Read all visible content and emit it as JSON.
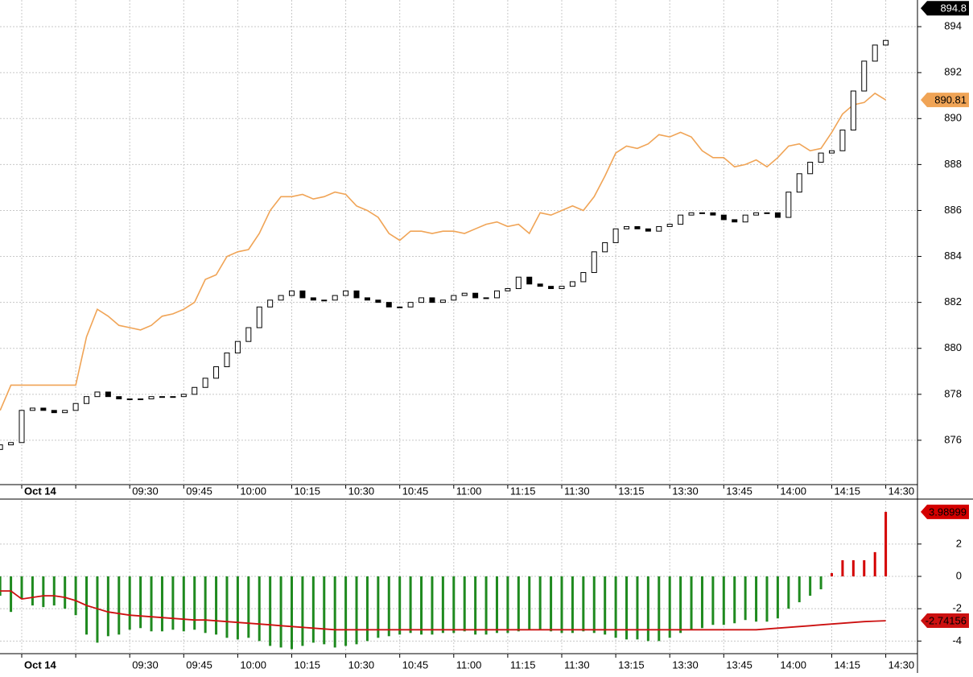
{
  "chart_data": [
    {
      "type": "candlestick",
      "categories": [
        null,
        null,
        "Oct 14",
        null,
        null,
        null,
        null,
        null,
        null,
        null,
        null,
        null,
        "09:30",
        null,
        null,
        null,
        null,
        "09:45",
        null,
        null,
        null,
        null,
        "10:00",
        null,
        null,
        null,
        null,
        "10:15",
        null,
        null,
        null,
        null,
        "10:30",
        null,
        null,
        null,
        null,
        "10:45",
        null,
        null,
        null,
        null,
        "11:00",
        null,
        null,
        null,
        null,
        "11:15",
        null,
        null,
        null,
        null,
        "11:30",
        null,
        null,
        null,
        null,
        "13:15",
        null,
        null,
        null,
        null,
        "13:30",
        null,
        null,
        null,
        null,
        "13:45",
        null,
        null,
        null,
        null,
        "14:00",
        null,
        null,
        null,
        null,
        "14:15",
        null,
        null,
        null,
        null,
        "14:30"
      ],
      "open": [
        875.6,
        875.8,
        875.9,
        877.3,
        877.4,
        877.3,
        877.2,
        877.3,
        877.6,
        877.9,
        878.1,
        877.9,
        877.8,
        877.8,
        877.8,
        877.9,
        877.9,
        877.9,
        878.0,
        878.3,
        878.7,
        879.2,
        879.8,
        880.3,
        880.9,
        881.8,
        882.1,
        882.3,
        882.5,
        882.2,
        882.1,
        882.1,
        882.3,
        882.5,
        882.2,
        882.1,
        882.0,
        881.8,
        881.8,
        882.0,
        882.2,
        882.0,
        882.1,
        882.3,
        882.4,
        882.2,
        882.2,
        882.5,
        882.6,
        883.1,
        882.8,
        882.7,
        882.6,
        882.7,
        882.9,
        883.3,
        884.2,
        884.6,
        885.2,
        885.3,
        885.2,
        885.1,
        885.3,
        885.4,
        885.8,
        885.9,
        885.9,
        885.8,
        885.6,
        885.5,
        885.8,
        885.9,
        885.9,
        885.7,
        886.8,
        887.6,
        888.1,
        888.5,
        888.6,
        889.5,
        891.2,
        892.5,
        893.2
      ],
      "close": [
        875.8,
        875.9,
        877.3,
        877.4,
        877.3,
        877.2,
        877.3,
        877.6,
        877.9,
        878.1,
        877.9,
        877.8,
        877.8,
        877.8,
        877.9,
        877.9,
        877.9,
        878.0,
        878.3,
        878.7,
        879.2,
        879.8,
        880.3,
        880.9,
        881.8,
        882.1,
        882.3,
        882.5,
        882.2,
        882.1,
        882.1,
        882.3,
        882.5,
        882.2,
        882.1,
        882.0,
        881.8,
        881.8,
        882.0,
        882.2,
        882.0,
        882.1,
        882.3,
        882.4,
        882.2,
        882.2,
        882.5,
        882.6,
        883.1,
        882.8,
        882.7,
        882.6,
        882.7,
        882.9,
        883.3,
        884.2,
        884.6,
        885.2,
        885.3,
        885.2,
        885.1,
        885.3,
        885.4,
        885.8,
        885.9,
        885.9,
        885.8,
        885.6,
        885.5,
        885.8,
        885.9,
        885.9,
        885.7,
        886.8,
        887.6,
        888.1,
        888.5,
        888.6,
        889.5,
        891.2,
        892.5,
        893.2,
        893.4
      ],
      "candle_color": "#000000",
      "overlay": {
        "color": "#f0a456",
        "values": [
          877.3,
          878.4,
          878.4,
          878.4,
          878.4,
          878.4,
          878.4,
          878.4,
          880.5,
          881.7,
          881.4,
          881.0,
          880.9,
          880.8,
          881.0,
          881.4,
          881.5,
          881.7,
          882.0,
          883.0,
          883.2,
          884.0,
          884.2,
          884.3,
          885.0,
          886.0,
          886.6,
          886.6,
          886.7,
          886.5,
          886.6,
          886.8,
          886.7,
          886.2,
          886.0,
          885.7,
          885.0,
          884.7,
          885.1,
          885.1,
          885.0,
          885.1,
          885.1,
          885.0,
          885.2,
          885.4,
          885.5,
          885.3,
          885.4,
          885.0,
          885.9,
          885.8,
          886.0,
          886.2,
          886.0,
          886.6,
          887.5,
          888.5,
          888.8,
          888.7,
          888.9,
          889.3,
          889.2,
          889.4,
          889.2,
          888.6,
          888.3,
          888.3,
          887.9,
          888.0,
          888.2,
          887.9,
          888.3,
          888.8,
          888.9,
          888.6,
          888.7,
          889.4,
          890.2,
          890.6,
          890.7,
          891.1,
          890.81
        ]
      },
      "last_price": 894.8,
      "ylim": [
        874.07,
        895.16
      ],
      "yticks": [
        876,
        878,
        880,
        882,
        884,
        886,
        888,
        890,
        892,
        894
      ],
      "grid": true
    },
    {
      "type": "bar",
      "categories": [
        null,
        null,
        "Oct 14",
        null,
        null,
        null,
        null,
        null,
        null,
        null,
        null,
        null,
        "09:30",
        null,
        null,
        null,
        null,
        "09:45",
        null,
        null,
        null,
        null,
        "10:00",
        null,
        null,
        null,
        null,
        "10:15",
        null,
        null,
        null,
        null,
        "10:30",
        null,
        null,
        null,
        null,
        "10:45",
        null,
        null,
        null,
        null,
        "11:00",
        null,
        null,
        null,
        null,
        "11:15",
        null,
        null,
        null,
        null,
        "11:30",
        null,
        null,
        null,
        null,
        "13:15",
        null,
        null,
        null,
        null,
        "13:30",
        null,
        null,
        null,
        null,
        "13:45",
        null,
        null,
        null,
        null,
        "14:00",
        null,
        null,
        null,
        null,
        "14:15",
        null,
        null,
        null,
        null,
        "14:30"
      ],
      "values": [
        -1.2,
        -2.2,
        -1.4,
        -1.8,
        -1.9,
        -1.8,
        -2.0,
        -2.4,
        -3.6,
        -4.1,
        -3.7,
        -3.6,
        -3.3,
        -3.2,
        -3.4,
        -3.4,
        -3.3,
        -3.4,
        -3.3,
        -3.5,
        -3.6,
        -3.8,
        -3.9,
        -3.8,
        -4.0,
        -4.3,
        -4.4,
        -4.5,
        -4.3,
        -4.1,
        -4.2,
        -4.4,
        -4.3,
        -4.2,
        -4.0,
        -3.8,
        -3.7,
        -3.6,
        -3.5,
        -3.6,
        -3.6,
        -3.5,
        -3.5,
        -3.4,
        -3.6,
        -3.6,
        -3.5,
        -3.5,
        -3.4,
        -3.3,
        -3.3,
        -3.4,
        -3.5,
        -3.5,
        -3.4,
        -3.5,
        -3.6,
        -3.8,
        -3.9,
        -3.9,
        -4.0,
        -4.0,
        -3.8,
        -3.5,
        -3.3,
        -3.2,
        -3.0,
        -3.0,
        -2.9,
        -2.7,
        -2.8,
        -2.8,
        -2.6,
        -2.0,
        -1.6,
        -1.2,
        -0.8,
        0.2,
        1.0,
        1.0,
        1.0,
        1.5,
        3.98999
      ],
      "colors": {
        "positive": "#d40000",
        "negative": "#1f8a1f"
      },
      "signal": {
        "color": "#cc1010",
        "values": [
          -0.9,
          -0.9,
          -1.4,
          -1.3,
          -1.2,
          -1.2,
          -1.3,
          -1.5,
          -1.8,
          -2.0,
          -2.2,
          -2.3,
          -2.4,
          -2.45,
          -2.5,
          -2.55,
          -2.6,
          -2.65,
          -2.7,
          -2.7,
          -2.75,
          -2.8,
          -2.85,
          -2.9,
          -2.95,
          -3.0,
          -3.05,
          -3.1,
          -3.15,
          -3.2,
          -3.25,
          -3.3,
          -3.3,
          -3.3,
          -3.3,
          -3.3,
          -3.3,
          -3.3,
          -3.3,
          -3.3,
          -3.3,
          -3.3,
          -3.3,
          -3.3,
          -3.3,
          -3.3,
          -3.3,
          -3.3,
          -3.3,
          -3.3,
          -3.3,
          -3.3,
          -3.3,
          -3.3,
          -3.3,
          -3.3,
          -3.3,
          -3.3,
          -3.3,
          -3.3,
          -3.3,
          -3.3,
          -3.3,
          -3.3,
          -3.3,
          -3.3,
          -3.3,
          -3.3,
          -3.3,
          -3.3,
          -3.3,
          -3.25,
          -3.2,
          -3.15,
          -3.1,
          -3.05,
          -3.0,
          -2.95,
          -2.9,
          -2.85,
          -2.8,
          -2.77,
          -2.74156
        ]
      },
      "ylim": [
        -4.78,
        4.68
      ],
      "yticks": [
        -4,
        -2,
        0,
        2
      ],
      "grid": true
    }
  ]
}
